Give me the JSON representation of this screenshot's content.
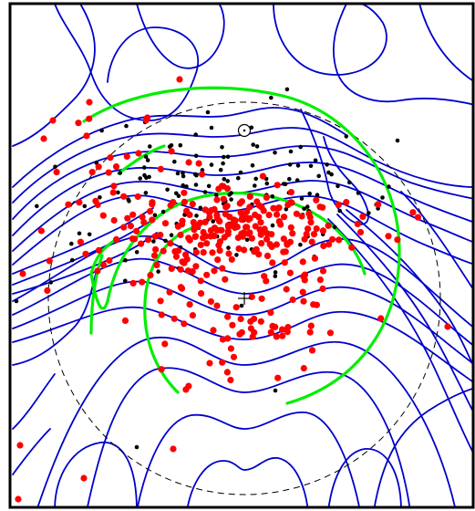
{
  "figure": {
    "colors": {
      "frame": "#000000",
      "contour": "#0000cc",
      "arc": "#00ee00",
      "reference_circle": "#000000",
      "point_red": "#ff0000",
      "point_black": "#000000",
      "background": "#ffffff"
    },
    "markers": {
      "center": "cross",
      "pole": "circle-dot"
    },
    "point_groups": {
      "red": {
        "approx_count": 330,
        "color_ref": "point_red"
      },
      "black": {
        "approx_count": 160,
        "color_ref": "point_black"
      }
    },
    "axes": {
      "ticks": "none",
      "labels": "none",
      "grid": false
    },
    "reference_circle_style": "dashed"
  }
}
